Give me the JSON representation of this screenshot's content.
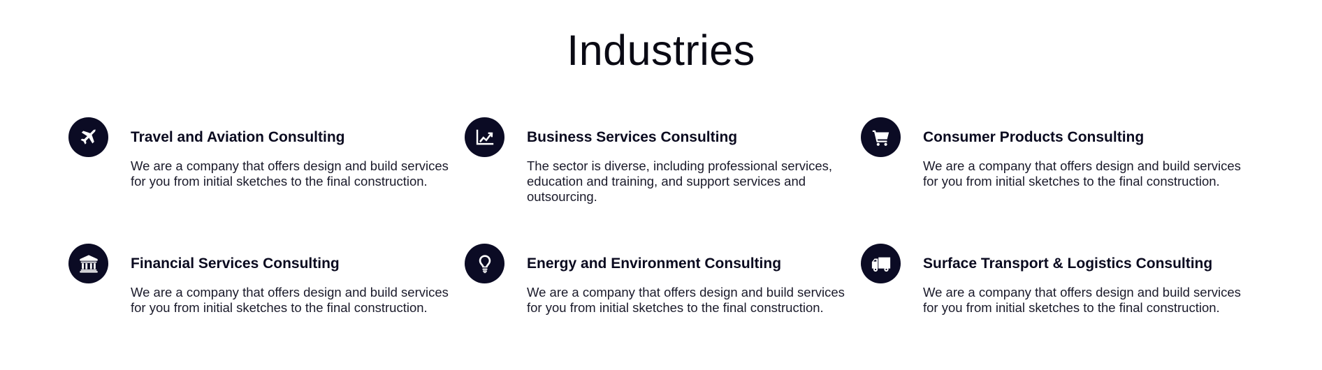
{
  "section": {
    "title": "Industries"
  },
  "industries": [
    {
      "icon": "airplane-icon",
      "title": "Travel and Aviation Consulting",
      "text": "We are a company that offers design and build services for you from initial sketches to the final construction."
    },
    {
      "icon": "chart-line-icon",
      "title": "Business Services Consulting",
      "text": "The sector is diverse, including professional services, education and training, and support services and outsourcing."
    },
    {
      "icon": "shopping-cart-icon",
      "title": "Consumer Products Consulting",
      "text": "We are a company that offers design and build services for you from initial sketches to the final construction."
    },
    {
      "icon": "bank-icon",
      "title": "Financial Services Consulting",
      "text": "We are a company that offers design and build services for you from initial sketches to the final construction."
    },
    {
      "icon": "lightbulb-icon",
      "title": "Energy and Environment Consulting",
      "text": "We are a company that offers design and build services for you from initial sketches to the final construction."
    },
    {
      "icon": "truck-icon",
      "title": "Surface Transport & Logistics Consulting",
      "text": "We are a company that offers design and build services for you from initial sketches to the final construction."
    }
  ],
  "colors": {
    "icon_background": "#0b0b24",
    "icon_foreground": "#ffffff",
    "text": "#0a0a1f"
  }
}
